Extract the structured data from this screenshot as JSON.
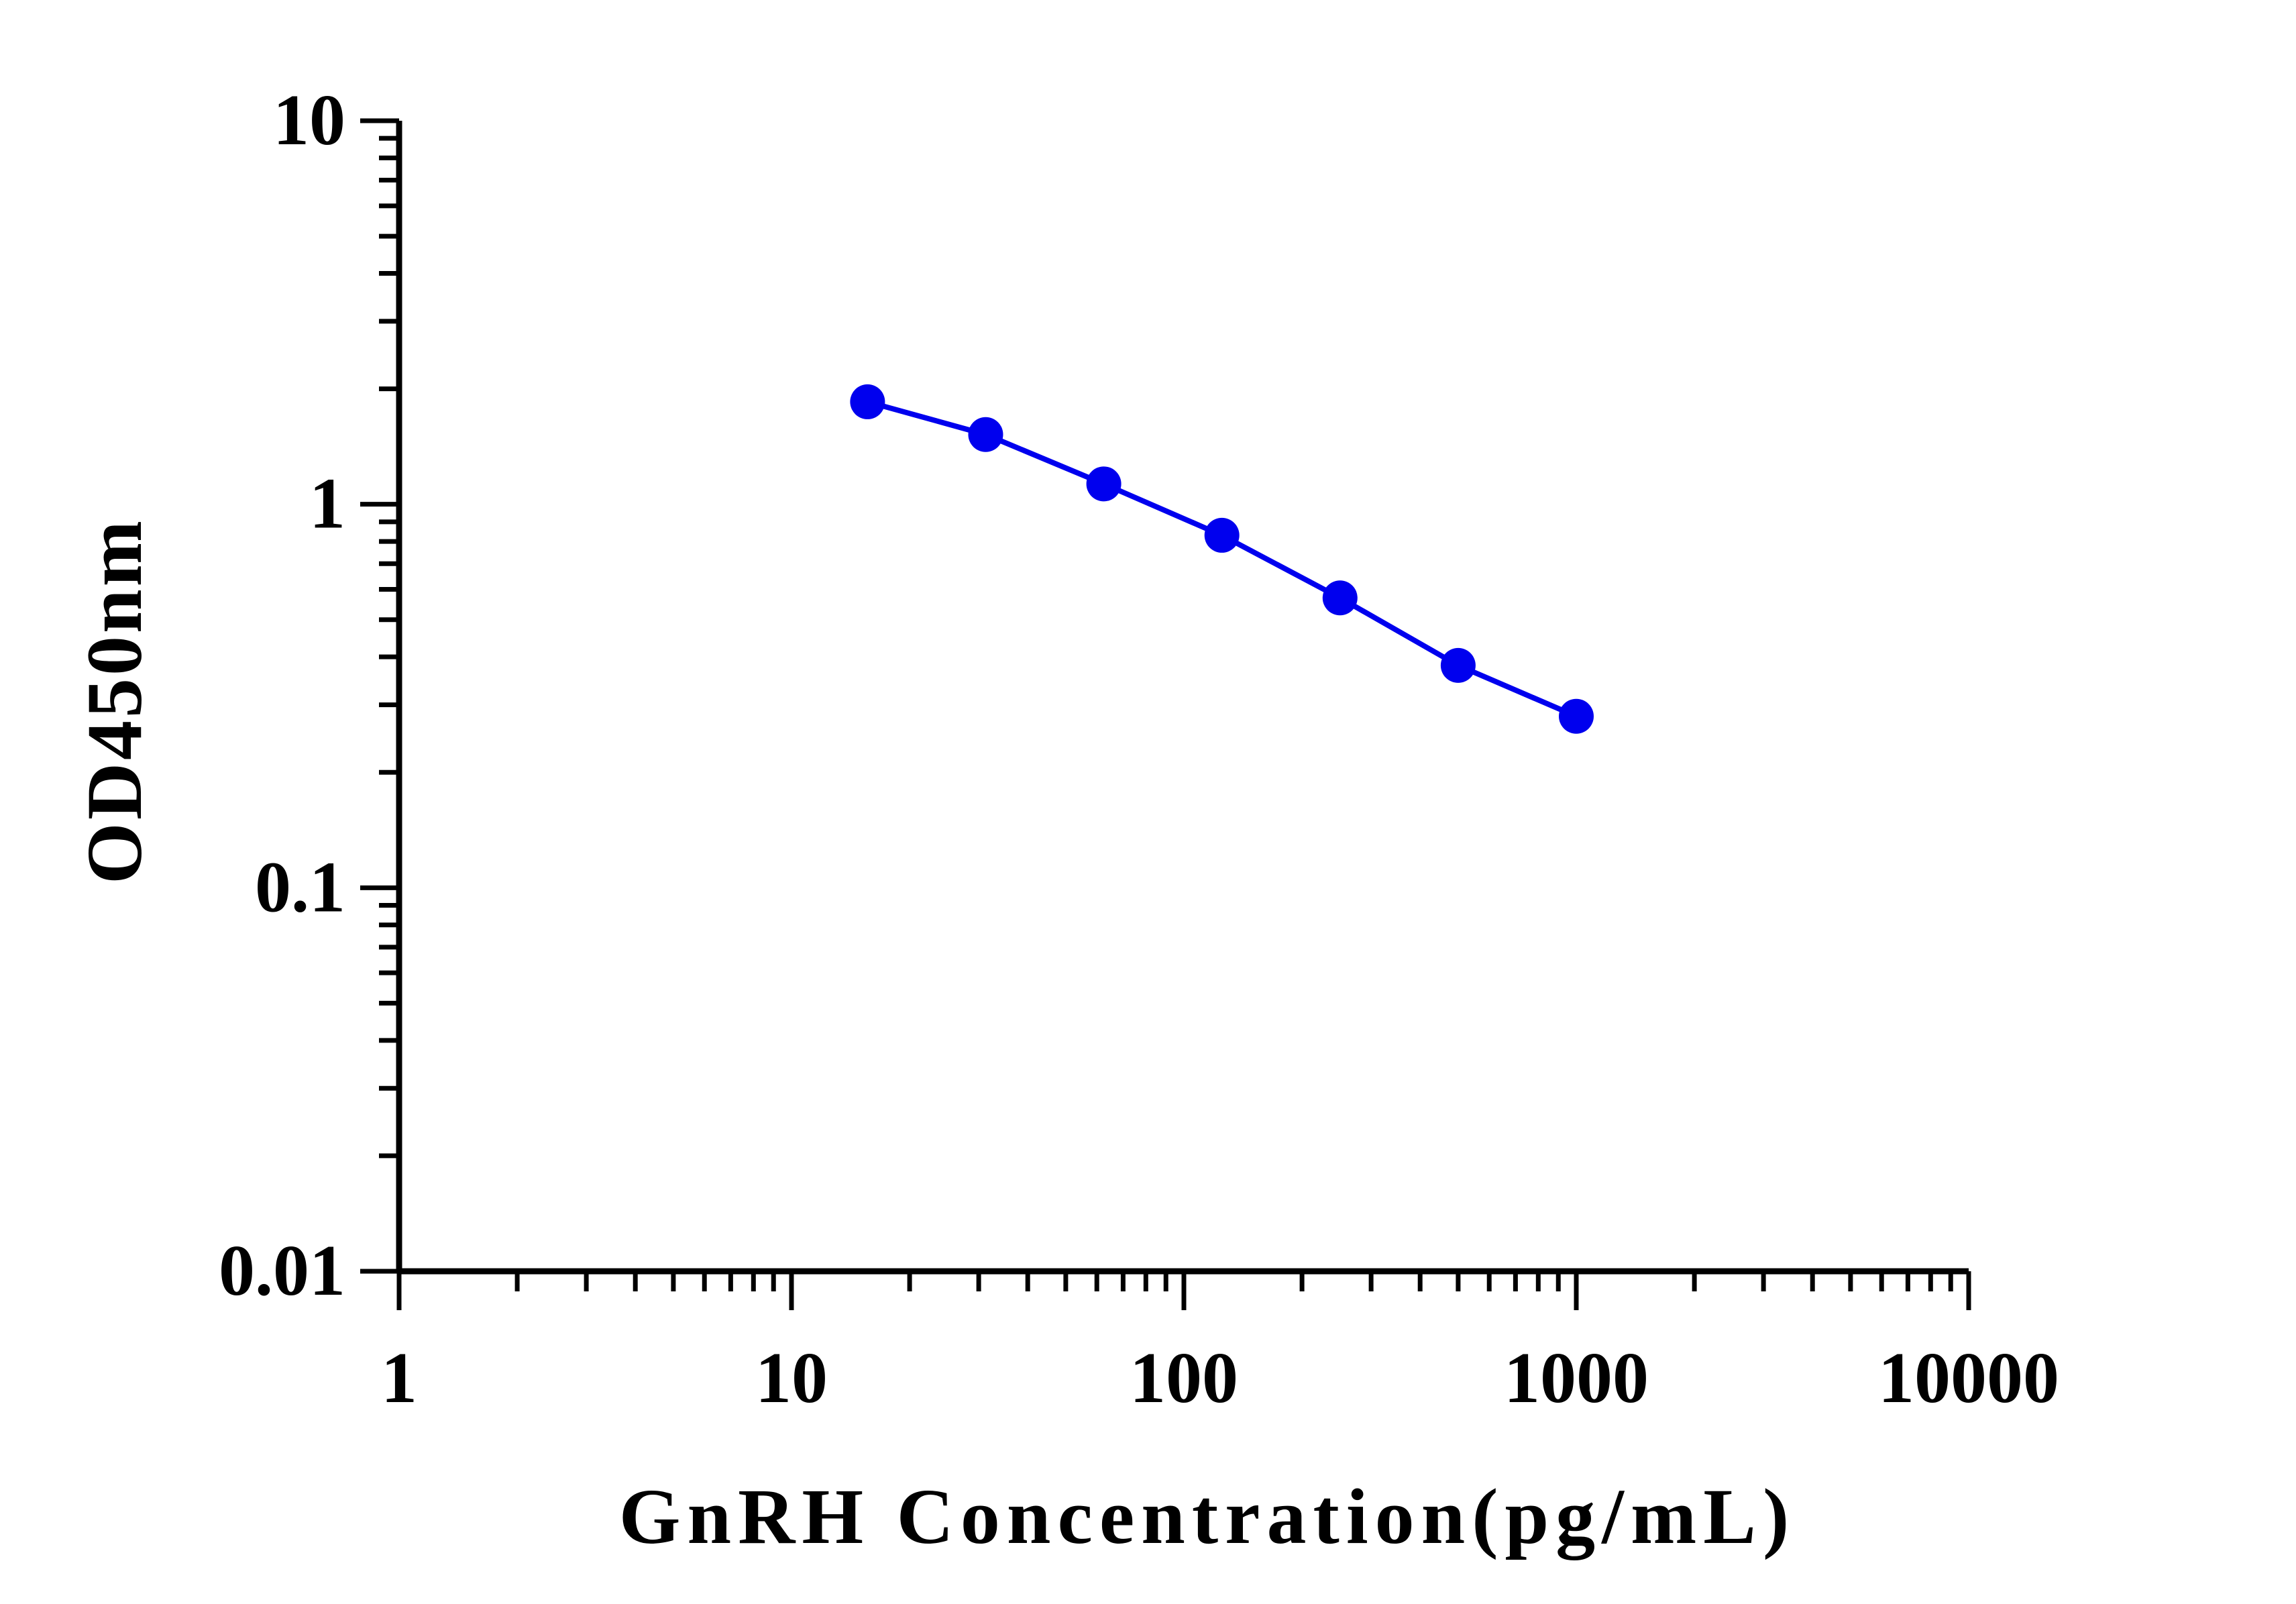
{
  "chart_data": {
    "type": "line",
    "xlabel": "GnRH Concentration(pg/mL)",
    "ylabel": "OD450nm",
    "x_scale": "log",
    "y_scale": "log",
    "xlim": [
      1,
      10000
    ],
    "ylim": [
      0.01,
      10
    ],
    "x_ticks": [
      "1",
      "10",
      "100",
      "1000",
      "10000"
    ],
    "y_ticks": [
      "0.01",
      "0.1",
      "1",
      "10"
    ],
    "grid": false,
    "legend": "none",
    "series": [
      {
        "color": "#0000ee",
        "marker": "circle",
        "x": [
          15.625,
          31.25,
          62.5,
          125,
          250,
          500,
          1000
        ],
        "y": [
          1.85,
          1.52,
          1.13,
          0.83,
          0.57,
          0.38,
          0.28
        ]
      }
    ]
  }
}
